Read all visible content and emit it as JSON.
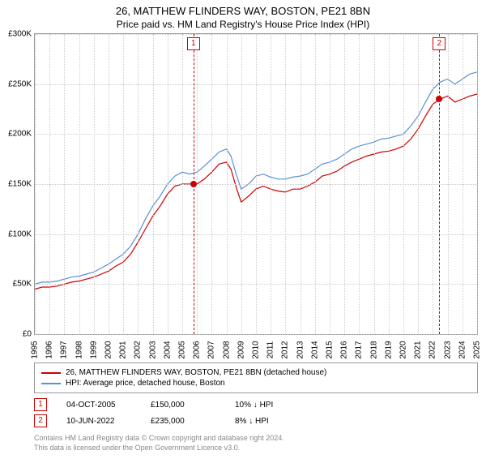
{
  "title": "26, MATTHEW FLINDERS WAY, BOSTON, PE21 8BN",
  "subtitle": "Price paid vs. HM Land Registry's House Price Index (HPI)",
  "chart": {
    "type": "line",
    "ylim": [
      0,
      300000
    ],
    "ytick_step": 50000,
    "yticks": [
      "£0",
      "£50K",
      "£100K",
      "£150K",
      "£200K",
      "£250K",
      "£300K"
    ],
    "xlim": [
      1995,
      2025
    ],
    "xticks": [
      1995,
      1996,
      1997,
      1998,
      1999,
      2000,
      2001,
      2002,
      2003,
      2004,
      2005,
      2006,
      2007,
      2008,
      2009,
      2010,
      2011,
      2012,
      2013,
      2014,
      2015,
      2016,
      2017,
      2018,
      2019,
      2020,
      2021,
      2022,
      2023,
      2024,
      2025
    ],
    "grid_color": "#cccccc",
    "background_color": "#ffffff",
    "series": [
      {
        "name": "26, MATTHEW FLINDERS WAY, BOSTON, PE21 8BN (detached house)",
        "color": "#cc0000",
        "width": 1.2,
        "data": [
          [
            1995,
            45000
          ],
          [
            1995.5,
            47000
          ],
          [
            1996,
            47000
          ],
          [
            1996.5,
            48000
          ],
          [
            1997,
            50000
          ],
          [
            1997.5,
            52000
          ],
          [
            1998,
            53000
          ],
          [
            1998.5,
            55000
          ],
          [
            1999,
            57000
          ],
          [
            1999.5,
            60000
          ],
          [
            2000,
            63000
          ],
          [
            2000.5,
            68000
          ],
          [
            2001,
            72000
          ],
          [
            2001.5,
            80000
          ],
          [
            2002,
            92000
          ],
          [
            2002.5,
            105000
          ],
          [
            2003,
            118000
          ],
          [
            2003.5,
            128000
          ],
          [
            2004,
            140000
          ],
          [
            2004.5,
            148000
          ],
          [
            2005,
            150000
          ],
          [
            2005.5,
            150000
          ],
          [
            2006,
            150000
          ],
          [
            2006.5,
            155000
          ],
          [
            2007,
            162000
          ],
          [
            2007.5,
            170000
          ],
          [
            2008,
            172000
          ],
          [
            2008.3,
            165000
          ],
          [
            2008.7,
            145000
          ],
          [
            2009,
            132000
          ],
          [
            2009.5,
            138000
          ],
          [
            2010,
            145000
          ],
          [
            2010.5,
            148000
          ],
          [
            2011,
            145000
          ],
          [
            2011.5,
            143000
          ],
          [
            2012,
            142000
          ],
          [
            2012.5,
            145000
          ],
          [
            2013,
            145000
          ],
          [
            2013.5,
            148000
          ],
          [
            2014,
            152000
          ],
          [
            2014.5,
            158000
          ],
          [
            2015,
            160000
          ],
          [
            2015.5,
            163000
          ],
          [
            2016,
            168000
          ],
          [
            2016.5,
            172000
          ],
          [
            2017,
            175000
          ],
          [
            2017.5,
            178000
          ],
          [
            2018,
            180000
          ],
          [
            2018.5,
            182000
          ],
          [
            2019,
            183000
          ],
          [
            2019.5,
            185000
          ],
          [
            2020,
            188000
          ],
          [
            2020.5,
            195000
          ],
          [
            2021,
            205000
          ],
          [
            2021.5,
            218000
          ],
          [
            2022,
            230000
          ],
          [
            2022.5,
            235000
          ],
          [
            2023,
            238000
          ],
          [
            2023.5,
            232000
          ],
          [
            2024,
            235000
          ],
          [
            2024.5,
            238000
          ],
          [
            2025,
            240000
          ]
        ]
      },
      {
        "name": "HPI: Average price, detached house, Boston",
        "color": "#5b8fd6",
        "width": 1.2,
        "data": [
          [
            1995,
            50000
          ],
          [
            1995.5,
            52000
          ],
          [
            1996,
            52000
          ],
          [
            1996.5,
            53000
          ],
          [
            1997,
            55000
          ],
          [
            1997.5,
            57000
          ],
          [
            1998,
            58000
          ],
          [
            1998.5,
            60000
          ],
          [
            1999,
            62000
          ],
          [
            1999.5,
            66000
          ],
          [
            2000,
            70000
          ],
          [
            2000.5,
            75000
          ],
          [
            2001,
            80000
          ],
          [
            2001.5,
            88000
          ],
          [
            2002,
            100000
          ],
          [
            2002.5,
            115000
          ],
          [
            2003,
            128000
          ],
          [
            2003.5,
            138000
          ],
          [
            2004,
            150000
          ],
          [
            2004.5,
            158000
          ],
          [
            2005,
            162000
          ],
          [
            2005.5,
            160000
          ],
          [
            2006,
            162000
          ],
          [
            2006.5,
            168000
          ],
          [
            2007,
            175000
          ],
          [
            2007.5,
            182000
          ],
          [
            2008,
            185000
          ],
          [
            2008.3,
            178000
          ],
          [
            2008.7,
            158000
          ],
          [
            2009,
            145000
          ],
          [
            2009.5,
            150000
          ],
          [
            2010,
            158000
          ],
          [
            2010.5,
            160000
          ],
          [
            2011,
            157000
          ],
          [
            2011.5,
            155000
          ],
          [
            2012,
            155000
          ],
          [
            2012.5,
            157000
          ],
          [
            2013,
            158000
          ],
          [
            2013.5,
            160000
          ],
          [
            2014,
            165000
          ],
          [
            2014.5,
            170000
          ],
          [
            2015,
            172000
          ],
          [
            2015.5,
            175000
          ],
          [
            2016,
            180000
          ],
          [
            2016.5,
            185000
          ],
          [
            2017,
            188000
          ],
          [
            2017.5,
            190000
          ],
          [
            2018,
            192000
          ],
          [
            2018.5,
            195000
          ],
          [
            2019,
            196000
          ],
          [
            2019.5,
            198000
          ],
          [
            2020,
            200000
          ],
          [
            2020.5,
            208000
          ],
          [
            2021,
            218000
          ],
          [
            2021.5,
            232000
          ],
          [
            2022,
            245000
          ],
          [
            2022.5,
            252000
          ],
          [
            2023,
            255000
          ],
          [
            2023.5,
            250000
          ],
          [
            2024,
            255000
          ],
          [
            2024.5,
            260000
          ],
          [
            2025,
            262000
          ]
        ]
      }
    ],
    "markers": [
      {
        "num": "1",
        "x": 2005.76,
        "y": 150000,
        "color": "#cc0000"
      },
      {
        "num": "2",
        "x": 2022.44,
        "y": 235000,
        "color": "#cc0000"
      }
    ]
  },
  "legend": {
    "items": [
      {
        "color": "#cc0000",
        "label": "26, MATTHEW FLINDERS WAY, BOSTON, PE21 8BN (detached house)"
      },
      {
        "color": "#5b8fd6",
        "label": "HPI: Average price, detached house, Boston"
      }
    ]
  },
  "sales": [
    {
      "num": "1",
      "date": "04-OCT-2005",
      "price": "£150,000",
      "diff": "10% ↓ HPI"
    },
    {
      "num": "2",
      "date": "10-JUN-2022",
      "price": "£235,000",
      "diff": "8% ↓ HPI"
    }
  ],
  "footer": {
    "line1": "Contains HM Land Registry data © Crown copyright and database right 2024.",
    "line2": "This data is licensed under the Open Government Licence v3.0."
  }
}
